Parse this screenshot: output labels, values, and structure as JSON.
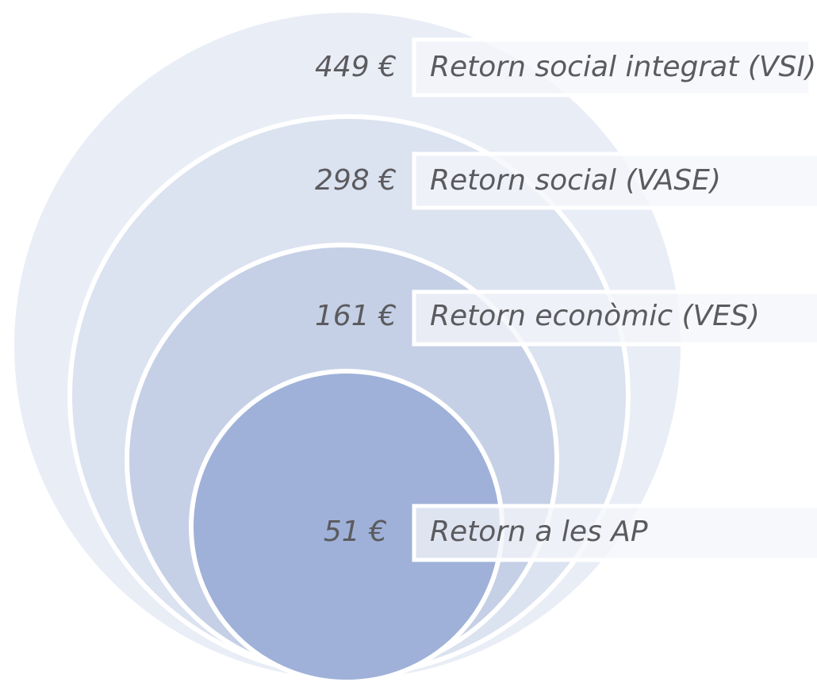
{
  "levels": [
    {
      "value": "449 €",
      "label": "Retorn social integrat (VSI)"
    },
    {
      "value": "298 €",
      "label": "Retorn social (VASE)"
    },
    {
      "value": "161 €",
      "label": "Retorn econòmic (VES)"
    },
    {
      "value": "51 €",
      "label": "Retorn a les AP"
    }
  ]
}
